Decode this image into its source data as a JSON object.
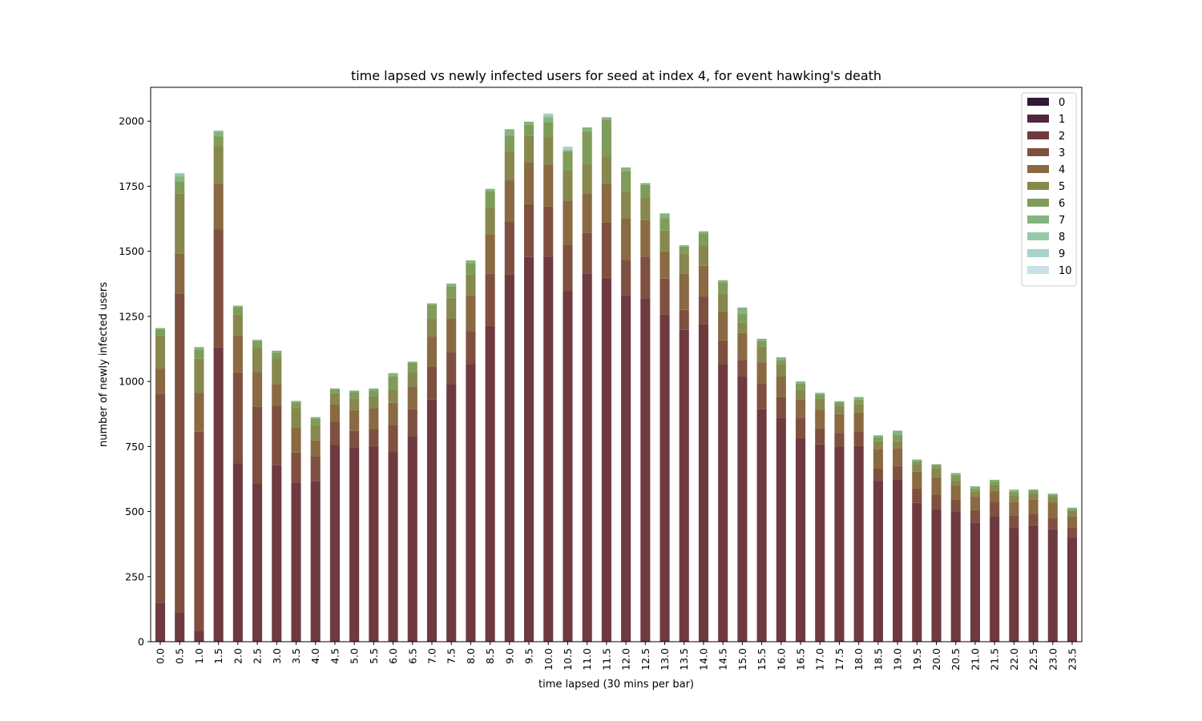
{
  "chart_data": {
    "type": "bar",
    "stacked": true,
    "title": "time lapsed vs newly infected users for seed at index 4, for event hawking's death",
    "xlabel": "time lapsed (30 mins per bar)",
    "ylabel": "number of newly infected users",
    "ylim": [
      0,
      2130
    ],
    "yticks": [
      0,
      250,
      500,
      750,
      1000,
      1250,
      1500,
      1750,
      2000
    ],
    "legend_position": "top-right",
    "grid": false,
    "categories": [
      "0.0",
      "0.5",
      "1.0",
      "1.5",
      "2.0",
      "2.5",
      "3.0",
      "3.5",
      "4.0",
      "4.5",
      "5.0",
      "5.5",
      "6.0",
      "6.5",
      "7.0",
      "7.5",
      "8.0",
      "8.5",
      "9.0",
      "9.5",
      "10.0",
      "10.5",
      "11.0",
      "11.5",
      "12.0",
      "12.5",
      "13.0",
      "13.5",
      "14.0",
      "14.5",
      "15.0",
      "15.5",
      "16.0",
      "16.5",
      "17.0",
      "17.5",
      "18.0",
      "18.5",
      "19.0",
      "19.5",
      "20.0",
      "20.5",
      "21.0",
      "21.5",
      "22.0",
      "22.5",
      "23.0",
      "23.5"
    ],
    "series": [
      {
        "name": "0",
        "color": "#2f1a38",
        "values": [
          0,
          0,
          0,
          0,
          0,
          0,
          0,
          0,
          0,
          0,
          0,
          0,
          0,
          0,
          0,
          0,
          0,
          0,
          0,
          0,
          0,
          0,
          0,
          0,
          0,
          0,
          0,
          0,
          0,
          0,
          0,
          0,
          0,
          0,
          0,
          0,
          0,
          0,
          0,
          0,
          0,
          0,
          0,
          0,
          0,
          0,
          0,
          0
        ]
      },
      {
        "name": "1",
        "color": "#51263f",
        "values": [
          0,
          0,
          0,
          0,
          0,
          0,
          0,
          0,
          0,
          0,
          0,
          0,
          0,
          0,
          0,
          0,
          0,
          0,
          0,
          0,
          0,
          0,
          0,
          0,
          0,
          0,
          0,
          0,
          0,
          0,
          0,
          0,
          0,
          0,
          0,
          0,
          0,
          0,
          0,
          0,
          0,
          0,
          0,
          0,
          0,
          0,
          0,
          0
        ]
      },
      {
        "name": "2",
        "color": "#6e3a40",
        "values": [
          148,
          112,
          40,
          1130,
          685,
          608,
          678,
          612,
          618,
          757,
          745,
          752,
          728,
          788,
          930,
          988,
          1065,
          1213,
          1410,
          1478,
          1480,
          1348,
          1413,
          1398,
          1332,
          1320,
          1258,
          1198,
          1220,
          1065,
          1020,
          893,
          860,
          783,
          758,
          748,
          752,
          617,
          623,
          533,
          508,
          500,
          458,
          482,
          437,
          447,
          432,
          400
        ]
      },
      {
        "name": "3",
        "color": "#7f5040",
        "values": [
          805,
          1225,
          767,
          455,
          350,
          295,
          227,
          115,
          95,
          88,
          65,
          65,
          105,
          105,
          127,
          125,
          128,
          200,
          203,
          203,
          192,
          177,
          157,
          212,
          135,
          160,
          137,
          77,
          107,
          93,
          63,
          100,
          80,
          77,
          63,
          55,
          57,
          48,
          52,
          55,
          57,
          47,
          47,
          55,
          48,
          45,
          42,
          37
        ]
      },
      {
        "name": "4",
        "color": "#8a6a43",
        "values": [
          95,
          153,
          150,
          175,
          143,
          133,
          85,
          95,
          60,
          68,
          80,
          80,
          85,
          88,
          118,
          130,
          137,
          152,
          160,
          162,
          162,
          170,
          153,
          150,
          160,
          140,
          105,
          140,
          117,
          110,
          103,
          80,
          80,
          72,
          70,
          72,
          72,
          75,
          67,
          65,
          67,
          53,
          52,
          42,
          53,
          53,
          60,
          45
        ]
      },
      {
        "name": "5",
        "color": "#86884d",
        "values": [
          130,
          233,
          130,
          145,
          78,
          92,
          95,
          75,
          55,
          42,
          45,
          45,
          52,
          55,
          68,
          78,
          80,
          103,
          113,
          100,
          105,
          115,
          110,
          105,
          100,
          88,
          80,
          75,
          78,
          70,
          40,
          60,
          45,
          37,
          42,
          32,
          32,
          30,
          30,
          30,
          35,
          20,
          20,
          25,
          25,
          23,
          20,
          20
        ]
      },
      {
        "name": "6",
        "color": "#7f9c5a",
        "values": [
          22,
          45,
          35,
          37,
          30,
          27,
          25,
          23,
          30,
          13,
          25,
          23,
          50,
          35,
          52,
          45,
          45,
          62,
          58,
          43,
          58,
          72,
          128,
          140,
          82,
          47,
          48,
          28,
          47,
          43,
          33,
          23,
          18,
          23,
          15,
          12,
          17,
          15,
          22,
          12,
          12,
          20,
          12,
          10,
          13,
          12,
          10,
          8
        ]
      },
      {
        "name": "7",
        "color": "#84b47f",
        "values": [
          5,
          20,
          10,
          17,
          5,
          5,
          8,
          5,
          5,
          5,
          5,
          8,
          12,
          5,
          5,
          10,
          10,
          10,
          23,
          12,
          18,
          7,
          15,
          10,
          13,
          7,
          18,
          5,
          8,
          8,
          25,
          8,
          10,
          8,
          8,
          5,
          10,
          8,
          17,
          5,
          3,
          8,
          8,
          8,
          8,
          5,
          5,
          5
        ]
      },
      {
        "name": "8",
        "color": "#96c8aa",
        "values": [
          0,
          12,
          0,
          5,
          0,
          0,
          0,
          0,
          0,
          0,
          0,
          0,
          0,
          0,
          0,
          0,
          0,
          0,
          3,
          0,
          8,
          3,
          0,
          0,
          0,
          0,
          0,
          0,
          0,
          0,
          0,
          0,
          0,
          0,
          0,
          0,
          0,
          0,
          0,
          0,
          0,
          0,
          0,
          0,
          0,
          0,
          0,
          0
        ]
      },
      {
        "name": "9",
        "color": "#a8d3cc",
        "values": [
          0,
          0,
          0,
          0,
          0,
          0,
          0,
          0,
          0,
          0,
          0,
          0,
          0,
          0,
          0,
          0,
          0,
          0,
          0,
          0,
          7,
          10,
          0,
          0,
          0,
          0,
          0,
          0,
          0,
          0,
          0,
          0,
          0,
          0,
          0,
          0,
          0,
          0,
          0,
          0,
          0,
          0,
          0,
          0,
          0,
          0,
          0,
          0
        ]
      },
      {
        "name": "10",
        "color": "#c8e0e8",
        "values": [
          0,
          0,
          0,
          0,
          0,
          0,
          0,
          0,
          0,
          0,
          0,
          0,
          0,
          0,
          0,
          0,
          0,
          0,
          0,
          0,
          0,
          0,
          0,
          0,
          0,
          0,
          0,
          0,
          0,
          0,
          0,
          0,
          0,
          0,
          0,
          0,
          0,
          0,
          0,
          0,
          0,
          0,
          0,
          0,
          0,
          0,
          0,
          0
        ]
      }
    ]
  }
}
